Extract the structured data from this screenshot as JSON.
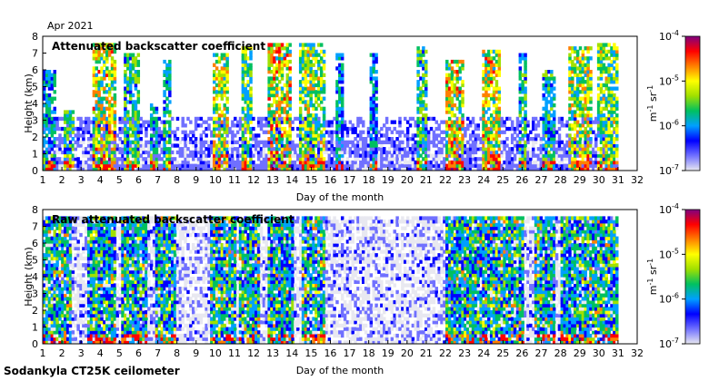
{
  "header": {
    "date_label": "Apr 2021"
  },
  "footer": {
    "instrument": "Sodankyla CT25K ceilometer"
  },
  "chart_data": [
    {
      "type": "heatmap",
      "title": "Attenuated backscatter coefficient",
      "xlabel": "Day of the month",
      "ylabel": "Height (km)",
      "xlim": [
        1,
        32
      ],
      "ylim": [
        0,
        8
      ],
      "x_ticks": [
        "1",
        "2",
        "3",
        "4",
        "5",
        "6",
        "7",
        "8",
        "9",
        "10",
        "11",
        "12",
        "13",
        "14",
        "15",
        "16",
        "17",
        "18",
        "19",
        "20",
        "21",
        "22",
        "23",
        "24",
        "25",
        "26",
        "27",
        "28",
        "29",
        "30",
        "31",
        "32"
      ],
      "y_ticks": [
        "0",
        "1",
        "2",
        "3",
        "4",
        "5",
        "6",
        "7",
        "8"
      ],
      "data_end_day": 31,
      "colorbar": {
        "scale": "log",
        "range": [
          1e-07,
          0.0001
        ],
        "unit": "m-1 sr-1",
        "ticks": [
          {
            "base": "10",
            "exp": "-7"
          },
          {
            "base": "10",
            "exp": "-6"
          },
          {
            "base": "10",
            "exp": "-5"
          },
          {
            "base": "10",
            "exp": "-4"
          }
        ],
        "colors": [
          "#e8e8f0",
          "#7070ff",
          "#0000ff",
          "#00a0ff",
          "#00c060",
          "#a0e000",
          "#ffff00",
          "#ff8000",
          "#ff0000",
          "#800080"
        ]
      },
      "cloud_events": [
        {
          "day_start": 1.0,
          "day_end": 1.6,
          "top_km": 6.0,
          "intensity": 0.5
        },
        {
          "day_start": 2.0,
          "day_end": 2.6,
          "top_km": 3.5,
          "intensity": 0.6
        },
        {
          "day_start": 3.5,
          "day_end": 4.7,
          "top_km": 7.5,
          "intensity": 0.85
        },
        {
          "day_start": 5.2,
          "day_end": 6.0,
          "top_km": 7.0,
          "intensity": 0.6
        },
        {
          "day_start": 6.5,
          "day_end": 7.0,
          "top_km": 4.0,
          "intensity": 0.5
        },
        {
          "day_start": 7.2,
          "day_end": 7.6,
          "top_km": 6.5,
          "intensity": 0.55
        },
        {
          "day_start": 9.8,
          "day_end": 10.6,
          "top_km": 7.0,
          "intensity": 0.8
        },
        {
          "day_start": 11.3,
          "day_end": 11.9,
          "top_km": 7.3,
          "intensity": 0.7
        },
        {
          "day_start": 12.6,
          "day_end": 13.9,
          "top_km": 7.6,
          "intensity": 0.9
        },
        {
          "day_start": 14.3,
          "day_end": 15.6,
          "top_km": 7.5,
          "intensity": 0.75
        },
        {
          "day_start": 16.2,
          "day_end": 16.6,
          "top_km": 7.0,
          "intensity": 0.5
        },
        {
          "day_start": 18.0,
          "day_end": 18.4,
          "top_km": 7.0,
          "intensity": 0.45
        },
        {
          "day_start": 20.5,
          "day_end": 21.0,
          "top_km": 7.4,
          "intensity": 0.6
        },
        {
          "day_start": 22.0,
          "day_end": 22.9,
          "top_km": 6.5,
          "intensity": 0.85
        },
        {
          "day_start": 23.8,
          "day_end": 24.8,
          "top_km": 7.2,
          "intensity": 0.85
        },
        {
          "day_start": 25.8,
          "day_end": 26.2,
          "top_km": 7.0,
          "intensity": 0.6
        },
        {
          "day_start": 27.0,
          "day_end": 27.6,
          "top_km": 6.0,
          "intensity": 0.55
        },
        {
          "day_start": 28.3,
          "day_end": 29.6,
          "top_km": 7.3,
          "intensity": 0.8
        },
        {
          "day_start": 29.9,
          "day_end": 30.9,
          "top_km": 7.5,
          "intensity": 0.75
        }
      ]
    },
    {
      "type": "heatmap",
      "title": "Raw attenuated backscatter coefficient",
      "xlabel": "Day of the month",
      "ylabel": "Height (km)",
      "xlim": [
        1,
        32
      ],
      "ylim": [
        0,
        8
      ],
      "x_ticks": [
        "1",
        "2",
        "3",
        "4",
        "5",
        "6",
        "7",
        "8",
        "9",
        "10",
        "11",
        "12",
        "13",
        "14",
        "15",
        "16",
        "17",
        "18",
        "19",
        "20",
        "21",
        "22",
        "23",
        "24",
        "25",
        "26",
        "27",
        "28",
        "29",
        "30",
        "31",
        "32"
      ],
      "y_ticks": [
        "0",
        "1",
        "2",
        "3",
        "4",
        "5",
        "6",
        "7",
        "8"
      ],
      "data_end_day": 31,
      "colorbar": {
        "scale": "log",
        "range": [
          1e-07,
          0.0001
        ],
        "unit": "m-1 sr-1",
        "ticks": [
          {
            "base": "10",
            "exp": "-7"
          },
          {
            "base": "10",
            "exp": "-6"
          },
          {
            "base": "10",
            "exp": "-5"
          },
          {
            "base": "10",
            "exp": "-4"
          }
        ],
        "colors": [
          "#e8e8f0",
          "#7070ff",
          "#0000ff",
          "#00a0ff",
          "#00c060",
          "#a0e000",
          "#ffff00",
          "#ff8000",
          "#ff0000",
          "#800080"
        ]
      },
      "noisy_bands": [
        {
          "day_start": 1.0,
          "day_end": 2.5
        },
        {
          "day_start": 3.3,
          "day_end": 4.8
        },
        {
          "day_start": 5.0,
          "day_end": 6.4
        },
        {
          "day_start": 6.8,
          "day_end": 7.9
        },
        {
          "day_start": 9.6,
          "day_end": 11.0
        },
        {
          "day_start": 11.2,
          "day_end": 12.2
        },
        {
          "day_start": 12.7,
          "day_end": 14.0
        },
        {
          "day_start": 14.4,
          "day_end": 15.6
        },
        {
          "day_start": 22.0,
          "day_end": 26.0
        },
        {
          "day_start": 26.6,
          "day_end": 27.6
        },
        {
          "day_start": 27.9,
          "day_end": 31.0
        }
      ]
    }
  ]
}
